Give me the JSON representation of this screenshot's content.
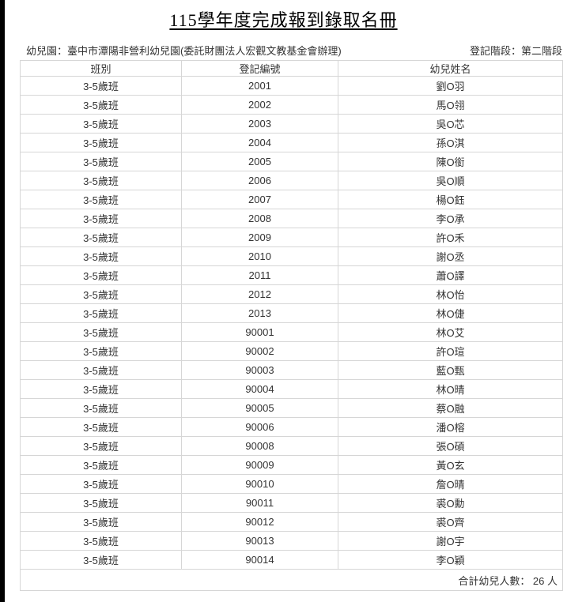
{
  "title": "115學年度完成報到錄取名冊",
  "kindergarten": "幼兒園：臺中市潭陽非營利幼兒園(委託財團法人宏觀文教基金會辦理)",
  "stage": "登記階段：第二階段",
  "columns": [
    "班別",
    "登記編號",
    "幼兒姓名"
  ],
  "rows": [
    [
      "3-5歲班",
      "2001",
      "劉O羽"
    ],
    [
      "3-5歲班",
      "2002",
      "馬O翎"
    ],
    [
      "3-5歲班",
      "2003",
      "吳O芯"
    ],
    [
      "3-5歲班",
      "2004",
      "孫O淇"
    ],
    [
      "3-5歲班",
      "2005",
      "陳O銜"
    ],
    [
      "3-5歲班",
      "2006",
      "吳O順"
    ],
    [
      "3-5歲班",
      "2007",
      "楊O鈺"
    ],
    [
      "3-5歲班",
      "2008",
      "李O承"
    ],
    [
      "3-5歲班",
      "2009",
      "許O禾"
    ],
    [
      "3-5歲班",
      "2010",
      "謝O丞"
    ],
    [
      "3-5歲班",
      "2011",
      "蕭O譯"
    ],
    [
      "3-5歲班",
      "2012",
      "林O怡"
    ],
    [
      "3-5歲班",
      "2013",
      "林O倢"
    ],
    [
      "3-5歲班",
      "90001",
      "林O艾"
    ],
    [
      "3-5歲班",
      "90002",
      "許O瑄"
    ],
    [
      "3-5歲班",
      "90003",
      "藍O甄"
    ],
    [
      "3-5歲班",
      "90004",
      "林O晴"
    ],
    [
      "3-5歲班",
      "90005",
      "蔡O融"
    ],
    [
      "3-5歲班",
      "90006",
      "潘O榕"
    ],
    [
      "3-5歲班",
      "90008",
      "張O碩"
    ],
    [
      "3-5歲班",
      "90009",
      "黃O玄"
    ],
    [
      "3-5歲班",
      "90010",
      "詹O晴"
    ],
    [
      "3-5歲班",
      "90011",
      "裘O勳"
    ],
    [
      "3-5歲班",
      "90012",
      "裘O齊"
    ],
    [
      "3-5歲班",
      "90013",
      "謝O宇"
    ],
    [
      "3-5歲班",
      "90014",
      "李O穎"
    ]
  ],
  "total": "合計幼兒人數： 26 人"
}
